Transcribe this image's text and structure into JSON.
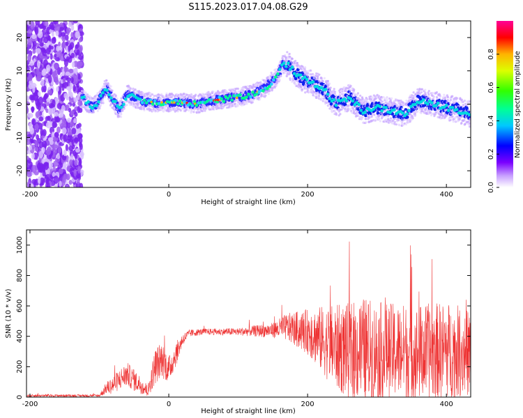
{
  "title": "S115.2023.017.04.08.G29",
  "chart_data": [
    {
      "type": "heatmap",
      "xlabel": "Height of straight line (km)",
      "ylabel": "Frequency (Hz)",
      "xlim": [
        -205,
        435
      ],
      "ylim": [
        -25,
        25
      ],
      "x_ticks": [
        -200,
        0,
        200,
        400
      ],
      "y_ticks": [
        -20,
        -10,
        0,
        10,
        20
      ],
      "colorbar": {
        "label": "Normalized spectral amplitude",
        "range": [
          0,
          1
        ],
        "ticks": [
          0.0,
          0.2,
          0.4,
          0.6,
          0.8
        ]
      },
      "ridge": {
        "x": [
          -125,
          -110,
          -100,
          -90,
          -80,
          -70,
          -60,
          -50,
          -40,
          -20,
          0,
          20,
          40,
          60,
          80,
          100,
          120,
          140,
          155,
          165,
          170,
          180,
          190,
          200,
          210,
          220,
          230,
          240,
          260,
          280,
          300,
          320,
          340,
          360,
          380,
          400,
          420,
          435
        ],
        "y": [
          2,
          -1,
          1,
          5,
          1,
          -2,
          3,
          2,
          1,
          0.5,
          0.5,
          0.5,
          0,
          1,
          1.5,
          2,
          3,
          5,
          8,
          12,
          12,
          10,
          8,
          7,
          6,
          5,
          3,
          0,
          2,
          -2,
          -1,
          -2,
          -3,
          1,
          0,
          -1,
          -2,
          -3
        ]
      },
      "noise_region": {
        "x_from": -205,
        "x_to": -125
      }
    },
    {
      "type": "line",
      "xlabel": "Height of straight line (km)",
      "ylabel": "SNR (10 * v/v)",
      "xlim": [
        -205,
        435
      ],
      "ylim": [
        0,
        1100
      ],
      "x_ticks": [
        -200,
        0,
        200,
        400
      ],
      "y_ticks": [
        0,
        200,
        400,
        600,
        800,
        1000
      ],
      "color": "#ee3333",
      "envelope": {
        "x": [
          -205,
          -100,
          -90,
          -80,
          -70,
          -60,
          -50,
          -40,
          -30,
          -20,
          -10,
          0,
          10,
          20,
          30,
          50,
          100,
          150,
          170,
          200,
          220,
          240,
          260,
          280,
          300,
          320,
          340,
          360,
          380,
          400,
          420,
          435
        ],
        "mean": [
          10,
          10,
          60,
          80,
          120,
          150,
          110,
          80,
          40,
          200,
          250,
          180,
          280,
          380,
          420,
          430,
          430,
          440,
          460,
          430,
          380,
          330,
          300,
          310,
          300,
          300,
          300,
          290,
          300,
          310,
          300,
          290
        ],
        "spread": [
          8,
          8,
          40,
          60,
          70,
          80,
          70,
          60,
          40,
          120,
          120,
          90,
          80,
          40,
          25,
          20,
          25,
          50,
          90,
          150,
          220,
          280,
          320,
          350,
          330,
          320,
          320,
          320,
          320,
          320,
          300,
          280
        ]
      }
    }
  ]
}
